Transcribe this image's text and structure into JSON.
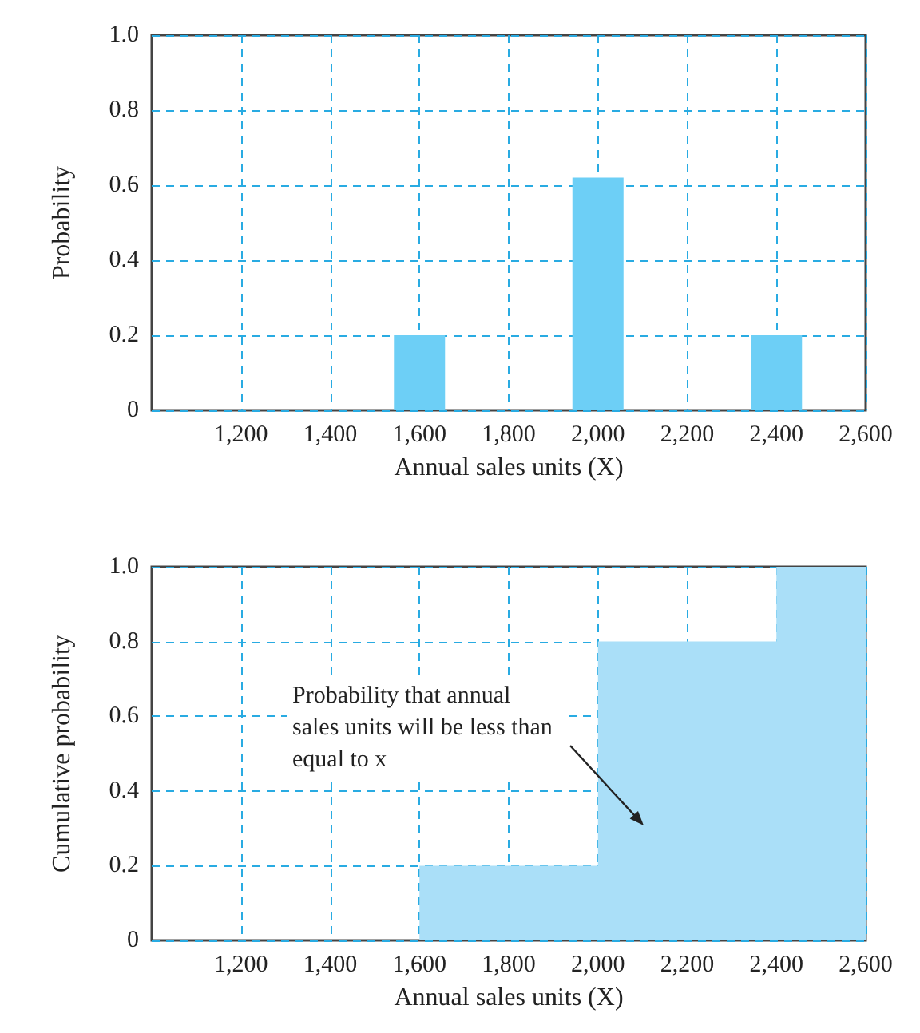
{
  "chart_data": [
    {
      "type": "bar",
      "xlabel": "Annual sales units (X)",
      "ylabel": "Probability",
      "x": [
        1600,
        2000,
        2400
      ],
      "values": [
        0.2,
        0.62,
        0.2
      ],
      "color": "#6dcff6",
      "xlim": [
        1000,
        2600
      ],
      "xticks": [
        {
          "value": 1200,
          "label": "1,200"
        },
        {
          "value": 1400,
          "label": "1,400"
        },
        {
          "value": 1600,
          "label": "1,600"
        },
        {
          "value": 1800,
          "label": "1,800"
        },
        {
          "value": 2000,
          "label": "2,000"
        },
        {
          "value": 2200,
          "label": "2,200"
        },
        {
          "value": 2400,
          "label": "2,400"
        },
        {
          "value": 2600,
          "label": "2,600"
        }
      ],
      "ylim": [
        0,
        1
      ],
      "yticks": [
        0,
        0.2,
        0.4,
        0.6,
        0.8,
        {
          "value": 1,
          "label": "1.0"
        }
      ],
      "grid": true
    },
    {
      "type": "area",
      "xlabel": "Annual sales units (X)",
      "ylabel": "Cumulative probability",
      "x": [
        1000,
        1600,
        1600,
        2000,
        2000,
        2400,
        2400,
        2600
      ],
      "values": [
        0,
        0,
        0.2,
        0.2,
        0.8,
        0.8,
        1,
        1
      ],
      "color": "#aadff8",
      "xlim": [
        1000,
        2600
      ],
      "xticks": [
        {
          "value": 1200,
          "label": "1,200"
        },
        {
          "value": 1400,
          "label": "1,400"
        },
        {
          "value": 1600,
          "label": "1,600"
        },
        {
          "value": 1800,
          "label": "1,800"
        },
        {
          "value": 2000,
          "label": "2,000"
        },
        {
          "value": 2200,
          "label": "2,200"
        },
        {
          "value": 2400,
          "label": "2,400"
        },
        {
          "value": 2600,
          "label": "2,600"
        }
      ],
      "ylim": [
        0,
        1
      ],
      "yticks": [
        0,
        0.2,
        0.4,
        0.6,
        0.8,
        {
          "value": 1,
          "label": "1.0"
        }
      ],
      "grid": true,
      "annotations": [
        "Probability that annual sales units will be less than equal to x"
      ]
    }
  ]
}
